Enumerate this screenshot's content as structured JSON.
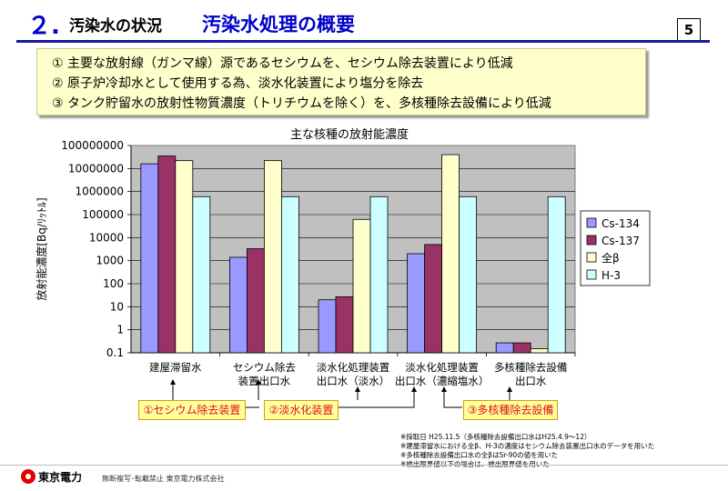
{
  "header": {
    "number": "２.",
    "subtitle": "汚染水の状況",
    "title": "汚染水処理の概要",
    "page": "5"
  },
  "summary": [
    "①  主要な放射線（ガンマ線）源であるセシウムを、セシウム除去装置により低減",
    "②  原子炉冷却水として使用する為、淡水化装置により塩分を除去",
    "③  タンク貯留水の放射性物質濃度（トリチウムを除く）を、多核種除去設備により低減"
  ],
  "chart_data": {
    "type": "bar",
    "title": "主な核種の放射能濃度",
    "ylabel": "放射能濃度[Bq/ﾘｯﾄﾙ]",
    "yscale": "log",
    "ylim": [
      0.1,
      100000000
    ],
    "yticks": [
      "0.1",
      "1",
      "10",
      "100",
      "1000",
      "10000",
      "100000",
      "1000000",
      "10000000",
      "100000000"
    ],
    "grid": true,
    "legend_position": "right",
    "categories": [
      [
        "建屋滞留水"
      ],
      [
        "セシウム除去",
        "装置出口水"
      ],
      [
        "淡水化処理装置",
        "出口水（淡水）"
      ],
      [
        "淡水化処理装置",
        "出口水（濃縮塩水）"
      ],
      [
        "多核種除去設備",
        "出口水"
      ]
    ],
    "series": [
      {
        "name": "Cs-134",
        "color": "#9999ff",
        "values": [
          16000000,
          1400,
          20,
          2000,
          0.27
        ]
      },
      {
        "name": "Cs-137",
        "color": "#993366",
        "values": [
          35000000,
          3300,
          27,
          5000,
          0.27
        ]
      },
      {
        "name": "全β",
        "color": "#ffffcc",
        "values": [
          22000000,
          22000000,
          62000,
          40000000,
          0.15
        ]
      },
      {
        "name": "H-3",
        "color": "#ccffff",
        "values": [
          600000,
          600000,
          600000,
          600000,
          600000
        ]
      }
    ]
  },
  "callouts": [
    {
      "label": "①セシウム除去装置"
    },
    {
      "label": "②淡水化装置"
    },
    {
      "label": "③多核種除去設備"
    }
  ],
  "notes": [
    "※採取日  H25.11.5（多核種除去設備出口水はH25.4.9〜12）",
    "※建屋滞留水における全β、H-3の濃度はセシウム除去装置出口水のデータを用いた",
    "※多核種除去設備出口水の全βはSr-90の値を用いた",
    "※検出限界値以下の場合は、検出限界値を用いた"
  ],
  "footer": {
    "logo_text": "東京電力",
    "text": "無断複写･転載禁止  東京電力株式会社"
  }
}
